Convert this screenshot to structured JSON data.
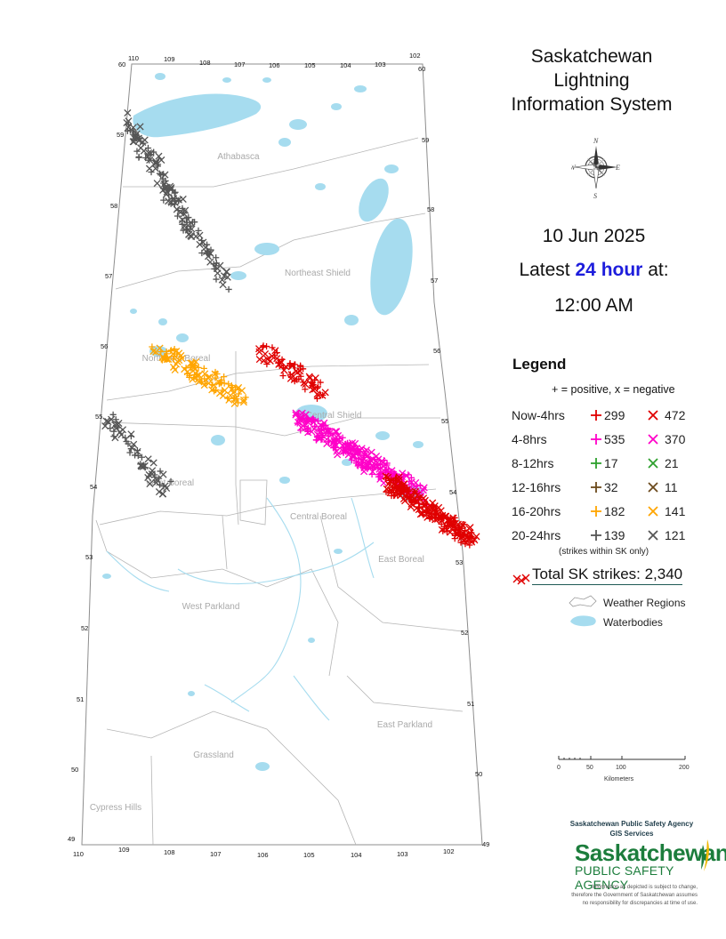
{
  "title_lines": [
    "Saskatchewan",
    "Lightning",
    "Information System"
  ],
  "date": "10 Jun 2025",
  "latest_prefix": "Latest",
  "latest_highlight": "24 hour",
  "latest_suffix": "at:",
  "time": "12:00 AM",
  "legend": {
    "title": "Legend",
    "subtitle": "+ = positive, x = negative",
    "rows": [
      {
        "label": "Now-4hrs",
        "pos": "299",
        "neg": "472",
        "color": "#e00000"
      },
      {
        "label": "4-8hrs",
        "pos": "535",
        "neg": "370",
        "color": "#ff00c8"
      },
      {
        "label": "8-12hrs",
        "pos": "17",
        "neg": "21",
        "color": "#2ea02e"
      },
      {
        "label": "12-16hrs",
        "pos": "32",
        "neg": "11",
        "color": "#6b4a1c"
      },
      {
        "label": "16-20hrs",
        "pos": "182",
        "neg": "141",
        "color": "#ffa500"
      },
      {
        "label": "20-24hrs",
        "pos": "139",
        "neg": "121",
        "color": "#555555"
      }
    ],
    "within_note": "(strikes within SK only)",
    "total": "Total SK strikes: 2,340",
    "weather_regions": "Weather Regions",
    "waterbodies": "Waterbodies"
  },
  "scale": {
    "ticks": [
      "0",
      "50",
      "100",
      "200"
    ],
    "unit": "Kilometers"
  },
  "agency": {
    "line1": "Saskatchewan Public Safety Agency",
    "line2": "GIS Services",
    "logo_main": "Saskatchewan",
    "logo_sub": "PUBLIC SAFETY AGENCY"
  },
  "disclaimer": [
    "Information as depicted is subject to change,",
    "therefore the Government of Saskatchewan assumes",
    "no responsibility for discrepancies at time of use."
  ],
  "map": {
    "regions": [
      "Athabasca",
      "Northeast Shield",
      "Northwest Boreal",
      "Central Shield",
      "West Boreal",
      "Central Boreal",
      "East Boreal",
      "West Parkland",
      "East Parkland",
      "Grassland",
      "Cypress Hills"
    ],
    "lat_labels": [
      "60",
      "59",
      "58",
      "57",
      "56",
      "55",
      "54",
      "53",
      "52",
      "51",
      "50",
      "49"
    ],
    "lon_top": [
      "110",
      "109",
      "108",
      "107",
      "106",
      "105",
      "104",
      "103",
      "102"
    ],
    "lon_bottom": [
      "110",
      "109",
      "108",
      "107",
      "106",
      "105",
      "104",
      "103",
      "102"
    ],
    "water_color": "#a6dcef",
    "border_color": "#999999",
    "strike_clusters": [
      {
        "name": "northwest-gray-band",
        "color": "#555555",
        "lat_range": [
          56.9,
          59.2
        ],
        "lon_range": [
          107.3,
          110.0
        ]
      },
      {
        "name": "northwest-boreal-orange",
        "color": "#ffa500",
        "lat_range": [
          55.3,
          56.0
        ],
        "lon_range": [
          106.9,
          109.0
        ]
      },
      {
        "name": "west-edge-gray",
        "color": "#555555",
        "lat_range": [
          54.0,
          55.0
        ],
        "lon_range": [
          108.6,
          110.0
        ]
      },
      {
        "name": "central-shield-red",
        "color": "#e00000",
        "lat_range": [
          55.4,
          56.0
        ],
        "lon_range": [
          105.0,
          106.5
        ]
      },
      {
        "name": "central-magenta-band",
        "color": "#ff00c8",
        "lat_range": [
          53.9,
          55.0
        ],
        "lon_range": [
          102.7,
          105.5
        ]
      },
      {
        "name": "east-boreal-red-band",
        "color": "#e00000",
        "lat_range": [
          53.3,
          54.1
        ],
        "lon_range": [
          101.7,
          103.5
        ]
      }
    ]
  }
}
